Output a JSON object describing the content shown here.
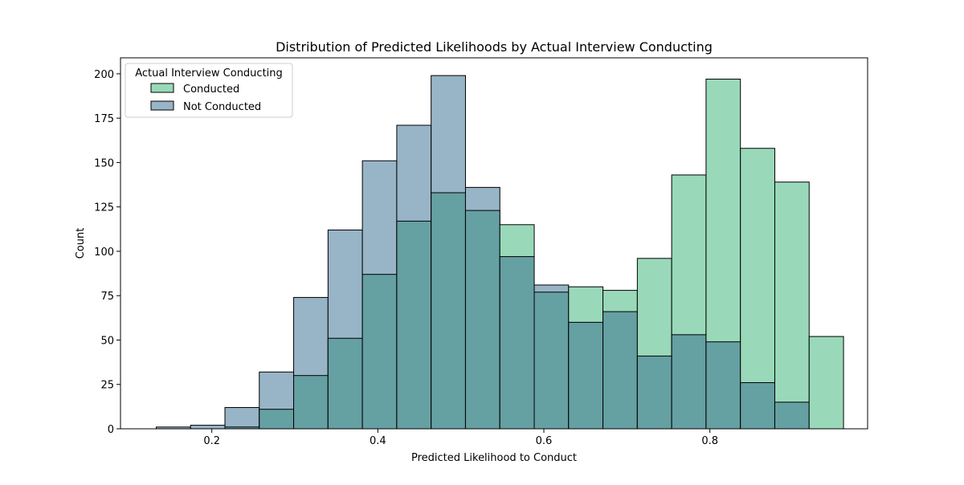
{
  "chart_data": {
    "type": "bar",
    "title": "Distribution of Predicted Likelihoods by Actual Interview Conducting",
    "xlabel": "Predicted Likelihood to Conduct",
    "ylabel": "Count",
    "xlim": [
      0.09,
      0.99
    ],
    "ylim": [
      0,
      209
    ],
    "xticks": [
      0.2,
      0.4,
      0.6,
      0.8
    ],
    "xtick_labels": [
      "0.2",
      "0.4",
      "0.6",
      "0.8"
    ],
    "yticks": [
      0,
      25,
      50,
      75,
      100,
      125,
      150,
      175,
      200
    ],
    "ytick_labels": [
      "0",
      "25",
      "50",
      "75",
      "100",
      "125",
      "150",
      "175",
      "200"
    ],
    "grid": false,
    "legend": {
      "title": "Actual Interview Conducting",
      "position": "upper-left"
    },
    "bin_edges": [
      0.133,
      0.1744,
      0.2158,
      0.2572,
      0.2986,
      0.34,
      0.3814,
      0.4228,
      0.4642,
      0.5056,
      0.547,
      0.5884,
      0.6298,
      0.6712,
      0.7126,
      0.754,
      0.7954,
      0.8368,
      0.8782,
      0.9196,
      0.961
    ],
    "series": [
      {
        "name": "Conducted",
        "color": "#99d9b9",
        "values": [
          0,
          0,
          1,
          11,
          30,
          51,
          87,
          117,
          133,
          123,
          115,
          77,
          80,
          78,
          96,
          143,
          197,
          158,
          139,
          52
        ]
      },
      {
        "name": "Not Conducted",
        "color": "#98b4c7",
        "values": [
          1,
          2,
          12,
          32,
          74,
          112,
          151,
          171,
          199,
          136,
          97,
          81,
          60,
          66,
          41,
          53,
          49,
          26,
          15,
          0
        ]
      }
    ],
    "overlap_color": "#65a0a2"
  }
}
